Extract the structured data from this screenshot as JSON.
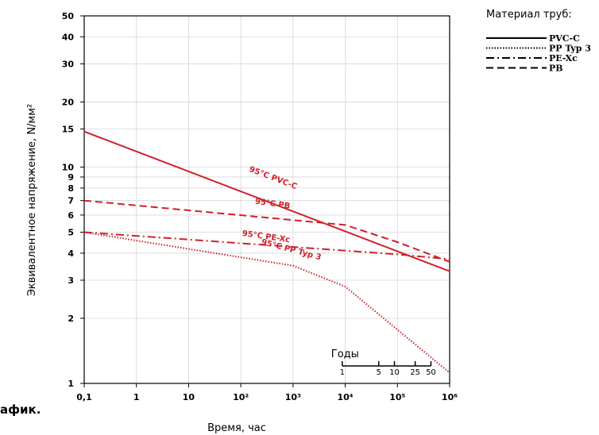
{
  "corner_text": "афик.",
  "chart_data": {
    "type": "line",
    "title": "",
    "xlabel": "Время, час",
    "ylabel": "Эквивалентное напряжение, N/мм²",
    "xscale": "log",
    "yscale": "log",
    "xlim": [
      0.1,
      1000000
    ],
    "ylim": [
      1,
      50
    ],
    "grid": true,
    "x_ticks": [
      {
        "value": 0.1,
        "label": "0,1"
      },
      {
        "value": 1,
        "label": "1"
      },
      {
        "value": 10,
        "label": "10"
      },
      {
        "value": 100,
        "label": "10²"
      },
      {
        "value": 1000,
        "label": "10³"
      },
      {
        "value": 10000,
        "label": "10⁴"
      },
      {
        "value": 100000,
        "label": "10⁵"
      },
      {
        "value": 1000000,
        "label": "10⁶"
      }
    ],
    "y_ticks": [
      {
        "value": 1,
        "label": "1"
      },
      {
        "value": 2,
        "label": "2"
      },
      {
        "value": 3,
        "label": "3"
      },
      {
        "value": 4,
        "label": "4"
      },
      {
        "value": 5,
        "label": "5"
      },
      {
        "value": 6,
        "label": "6"
      },
      {
        "value": 7,
        "label": "7"
      },
      {
        "value": 8,
        "label": "8"
      },
      {
        "value": 9,
        "label": "9"
      },
      {
        "value": 10,
        "label": "10"
      },
      {
        "value": 15,
        "label": "15"
      },
      {
        "value": 20,
        "label": "20"
      },
      {
        "value": 30,
        "label": "30"
      },
      {
        "value": 40,
        "label": "40"
      },
      {
        "value": 50,
        "label": "50"
      }
    ],
    "series": [
      {
        "name": "95°C PVC-C",
        "color": "#d0202a",
        "dash": "solid",
        "label_at": {
          "x": 400,
          "y": 8.7,
          "angle": 21
        },
        "points": [
          [
            0.1,
            14.6
          ],
          [
            1000000,
            3.3
          ]
        ]
      },
      {
        "name": "95°C PB",
        "color": "#d0202a",
        "dash": "dashed",
        "label_at": {
          "x": 400,
          "y": 6.6,
          "angle": 8
        },
        "points": [
          [
            0.1,
            7.0
          ],
          [
            10000,
            5.4
          ],
          [
            100000,
            4.5
          ],
          [
            1000000,
            3.65
          ]
        ]
      },
      {
        "name": "95°C PE-Xc",
        "color": "#d0202a",
        "dash": "dashdot",
        "label_at": {
          "x": 300,
          "y": 4.65,
          "angle": 8
        },
        "points": [
          [
            0.1,
            5.0
          ],
          [
            100000,
            3.95
          ],
          [
            1000000,
            3.75
          ]
        ]
      },
      {
        "name": "95°C PP Typ 3",
        "color": "#d0202a",
        "dash": "dotted",
        "label_at": {
          "x": 900,
          "y": 4.05,
          "angle": 15
        },
        "points": [
          [
            0.1,
            5.0
          ],
          [
            1000,
            3.5
          ],
          [
            10000,
            2.8
          ],
          [
            1000000,
            1.12
          ]
        ]
      }
    ],
    "years_scale": {
      "title": "Годы",
      "ticks": [
        {
          "years": 1,
          "label": "1"
        },
        {
          "years": 5,
          "label": "5"
        },
        {
          "years": 10,
          "label": "10"
        },
        {
          "years": 25,
          "label": "25"
        },
        {
          "years": 50,
          "label": "50"
        }
      ]
    },
    "legend": {
      "title": "Материал труб:",
      "position": "top-right",
      "items": [
        {
          "label": "PVC-C",
          "dash": "solid"
        },
        {
          "label": "PP Typ 3",
          "dash": "dotted"
        },
        {
          "label": "PE-Xc",
          "dash": "dashdot"
        },
        {
          "label": "PB",
          "dash": "dashed"
        }
      ]
    }
  }
}
